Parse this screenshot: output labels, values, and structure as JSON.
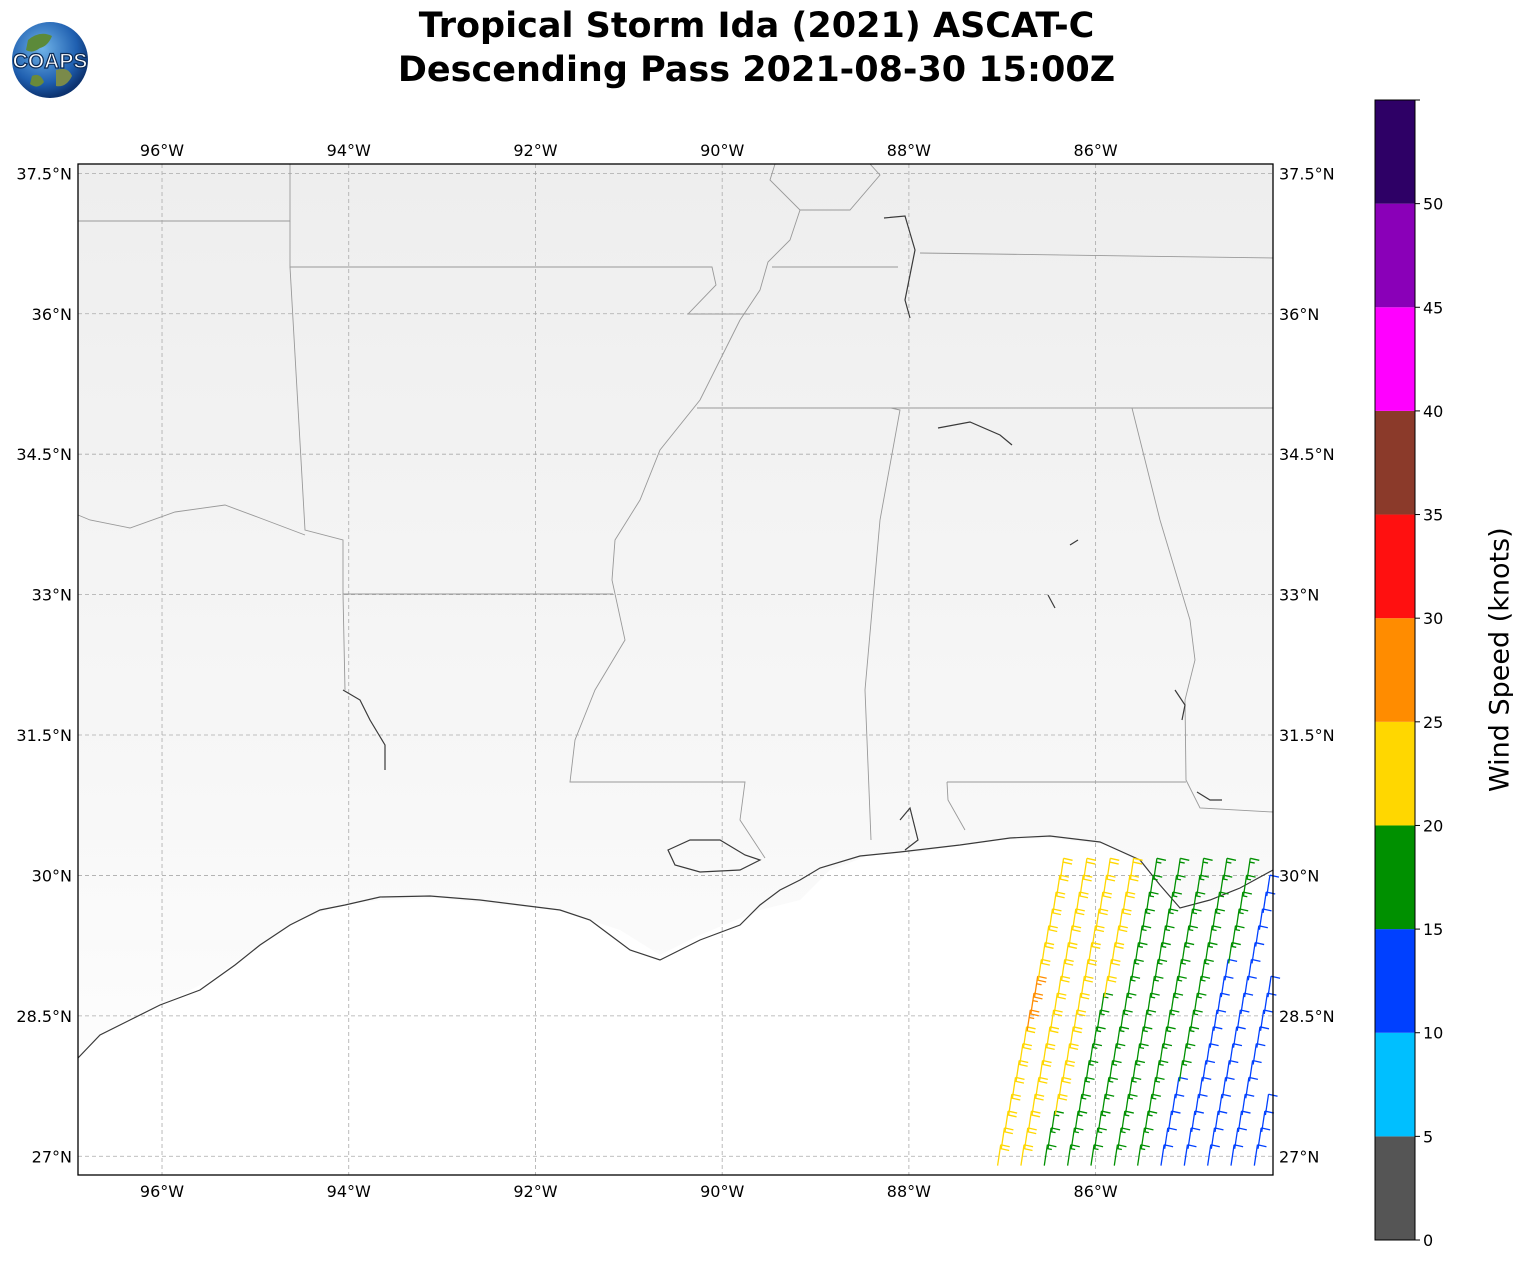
{
  "title": {
    "line1": "Tropical Storm Ida (2021) ASCAT-C",
    "line2": "Descending Pass 2021-08-30 15:00Z"
  },
  "logo": {
    "text": "COAPS",
    "icon": "globe-logo"
  },
  "map": {
    "lon_range": [
      -96.9,
      -84.1
    ],
    "lat_range": [
      26.8,
      37.6
    ],
    "lon_ticks": [
      {
        "value": -96,
        "label": "96°W"
      },
      {
        "value": -94,
        "label": "94°W"
      },
      {
        "value": -92,
        "label": "92°W"
      },
      {
        "value": -90,
        "label": "90°W"
      },
      {
        "value": -88,
        "label": "88°W"
      },
      {
        "value": -86,
        "label": "86°W"
      }
    ],
    "lat_ticks": [
      {
        "value": 37.5,
        "label": "37.5°N"
      },
      {
        "value": 36,
        "label": "36°N"
      },
      {
        "value": 34.5,
        "label": "34.5°N"
      },
      {
        "value": 33,
        "label": "33°N"
      },
      {
        "value": 31.5,
        "label": "31.5°N"
      },
      {
        "value": 30,
        "label": "30°N"
      },
      {
        "value": 28.5,
        "label": "28.5°N"
      },
      {
        "value": 27,
        "label": "27°N"
      }
    ],
    "grid": true
  },
  "colorbar": {
    "label": "Wind Speed (knots)",
    "bins": [
      {
        "min": 0,
        "max": 5,
        "color": "#555555"
      },
      {
        "min": 5,
        "max": 10,
        "color": "#00BFFF"
      },
      {
        "min": 10,
        "max": 15,
        "color": "#0040FF"
      },
      {
        "min": 15,
        "max": 20,
        "color": "#009000"
      },
      {
        "min": 20,
        "max": 25,
        "color": "#FFD700"
      },
      {
        "min": 25,
        "max": 30,
        "color": "#FF8C00"
      },
      {
        "min": 30,
        "max": 35,
        "color": "#FF1010"
      },
      {
        "min": 35,
        "max": 40,
        "color": "#8B3A2A"
      },
      {
        "min": 40,
        "max": 45,
        "color": "#FF00FF"
      },
      {
        "min": 45,
        "max": 50,
        "color": "#8A00B8"
      },
      {
        "min": 50,
        "max": 55,
        "color": "#2E0066"
      }
    ],
    "tick_labels": [
      "0",
      "5",
      "10",
      "15",
      "20",
      "25",
      "30",
      "35",
      "40",
      "45",
      "50"
    ]
  },
  "wind_swath": {
    "description_fields": [
      "lon",
      "lat",
      "speed_kt"
    ],
    "direction": "from south-southwest",
    "approx_extent": {
      "lon": [
        -87.0,
        -84.1
      ],
      "lat": [
        26.8,
        30.1
      ]
    }
  }
}
